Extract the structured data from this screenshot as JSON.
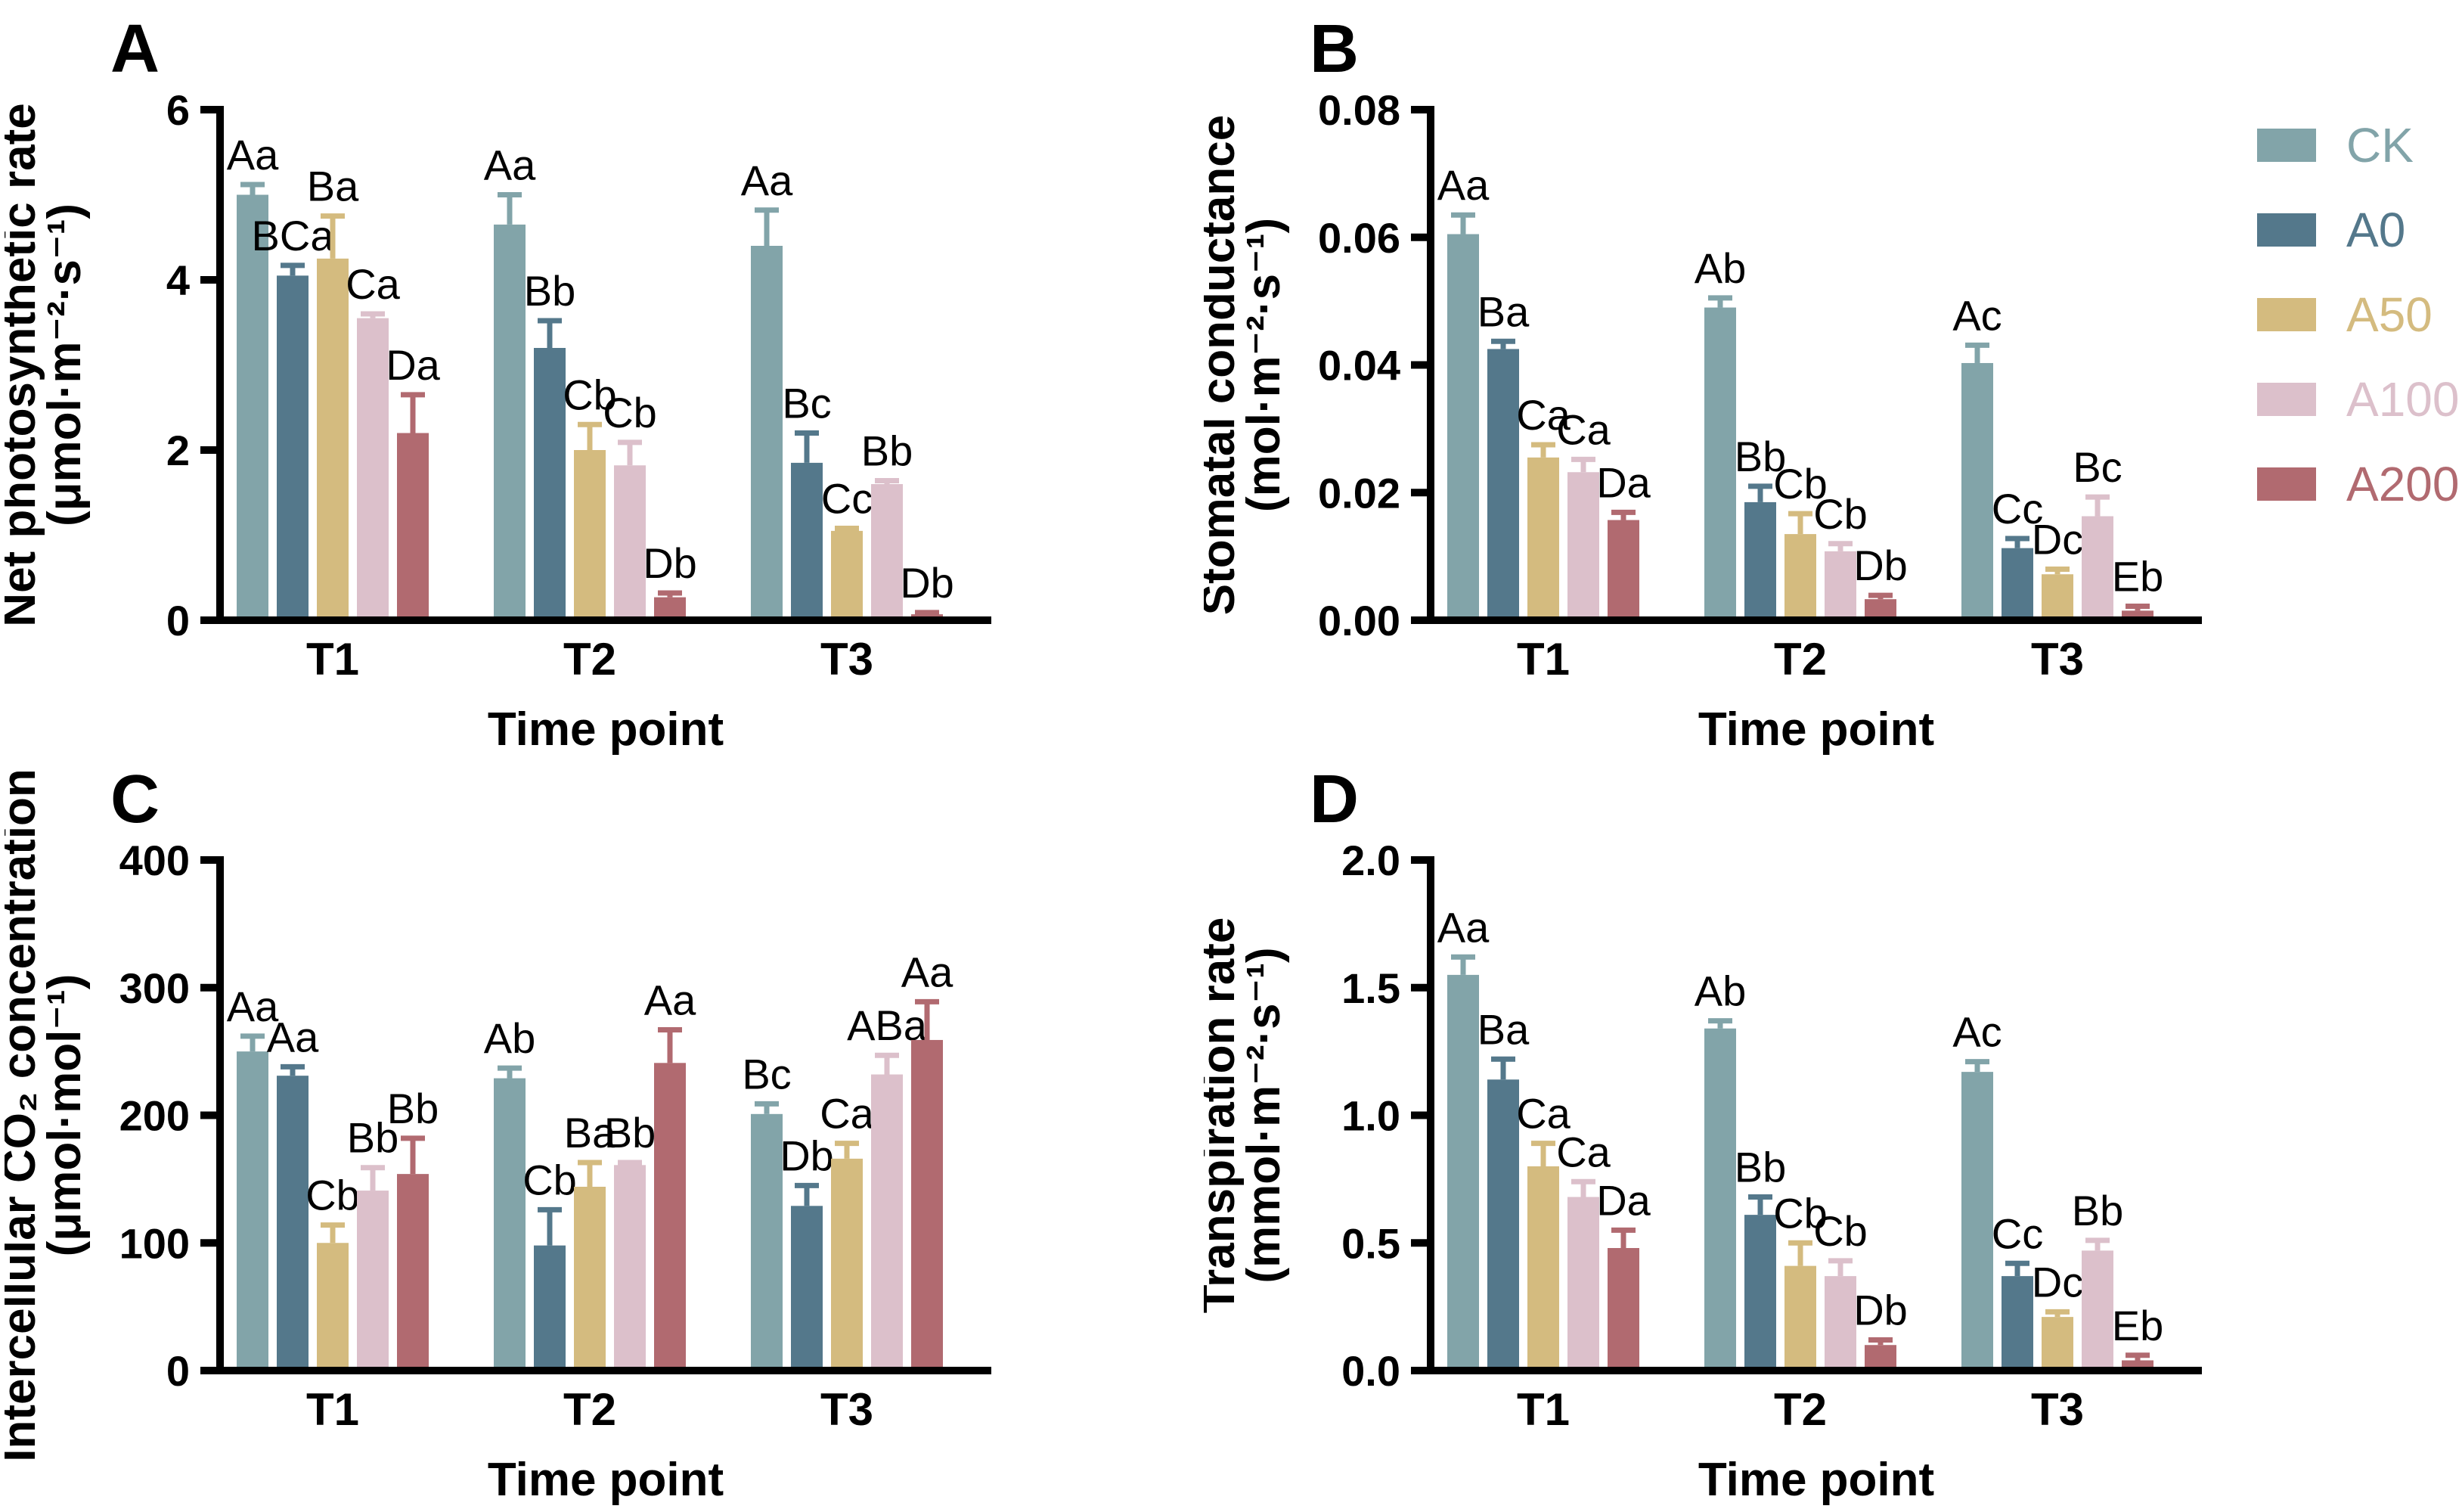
{
  "figure": {
    "panels": [
      "A",
      "B",
      "C",
      "D"
    ],
    "x_axis_title": "Time point",
    "categories": [
      "T1",
      "T2",
      "T3"
    ],
    "series_names": [
      "CK",
      "A0",
      "A50",
      "A100",
      "A200"
    ]
  },
  "legend": {
    "items": [
      {
        "label": "CK",
        "color": "#82A4A9"
      },
      {
        "label": "A0",
        "color": "#54788B"
      },
      {
        "label": "A50",
        "color": "#D4BB7F"
      },
      {
        "label": "A100",
        "color": "#DCC0CB"
      },
      {
        "label": "A200",
        "color": "#B16A70"
      }
    ]
  },
  "chart_data": [
    {
      "panel": "A",
      "type": "bar",
      "ylabel_line1": "Net photosynthetic rate",
      "ylabel_line2": "(μmol·m⁻²·s⁻¹)",
      "xlabel": "Time point",
      "categories": [
        "T1",
        "T2",
        "T3"
      ],
      "ylim": [
        0,
        6
      ],
      "yticks": [
        0,
        2,
        4,
        6
      ],
      "ytick_labels": [
        "0",
        "2",
        "4",
        "6"
      ],
      "legend_position": "none",
      "grid": false,
      "series": [
        {
          "name": "CK",
          "color": "#82A4A9",
          "values": [
            5.0,
            4.65,
            4.4
          ],
          "errors": [
            0.12,
            0.35,
            0.42
          ],
          "letters": [
            "Aa",
            "Aa",
            "Aa"
          ]
        },
        {
          "name": "A0",
          "color": "#54788B",
          "values": [
            4.05,
            3.2,
            1.85
          ],
          "errors": [
            0.12,
            0.32,
            0.35
          ],
          "letters": [
            "BCa",
            "Bb",
            "Bc"
          ]
        },
        {
          "name": "A50",
          "color": "#D4BB7F",
          "values": [
            4.25,
            2.0,
            1.05
          ],
          "errors": [
            0.5,
            0.3,
            0.03
          ],
          "letters": [
            "Ba",
            "Cb",
            "Cc"
          ]
        },
        {
          "name": "A100",
          "color": "#DCC0CB",
          "values": [
            3.55,
            1.82,
            1.6
          ],
          "errors": [
            0.05,
            0.27,
            0.04
          ],
          "letters": [
            "Ca",
            "Cb",
            "Bb"
          ]
        },
        {
          "name": "A200",
          "color": "#B16A70",
          "values": [
            2.2,
            0.27,
            0.07
          ],
          "errors": [
            0.45,
            0.05,
            0.02
          ],
          "letters": [
            "Da",
            "Db",
            "Db"
          ]
        }
      ]
    },
    {
      "panel": "B",
      "type": "bar",
      "ylabel_line1": "Stomatal conductance",
      "ylabel_line2": "(mol·m⁻²·s⁻¹)",
      "xlabel": "Time point",
      "categories": [
        "T1",
        "T2",
        "T3"
      ],
      "ylim": [
        0,
        0.08
      ],
      "yticks": [
        0,
        0.02,
        0.04,
        0.06,
        0.08
      ],
      "ytick_labels": [
        "0.00",
        "0.02",
        "0.04",
        "0.06",
        "0.08"
      ],
      "legend_position": "right",
      "grid": false,
      "series": [
        {
          "name": "CK",
          "color": "#82A4A9",
          "values": [
            0.0605,
            0.049,
            0.0403
          ],
          "errors": [
            0.003,
            0.0015,
            0.0028
          ],
          "letters": [
            "Aa",
            "Ab",
            "Ac"
          ]
        },
        {
          "name": "A0",
          "color": "#54788B",
          "values": [
            0.0425,
            0.0185,
            0.0113
          ],
          "errors": [
            0.0012,
            0.0025,
            0.0015
          ],
          "letters": [
            "Ba",
            "Bb",
            "Cc"
          ]
        },
        {
          "name": "A50",
          "color": "#D4BB7F",
          "values": [
            0.0255,
            0.0135,
            0.0072
          ],
          "errors": [
            0.002,
            0.0032,
            0.0008
          ],
          "letters": [
            "Ca",
            "Cb",
            "Dc"
          ]
        },
        {
          "name": "A100",
          "color": "#DCC0CB",
          "values": [
            0.0232,
            0.0108,
            0.0163
          ],
          "errors": [
            0.002,
            0.0012,
            0.003
          ],
          "letters": [
            "Ca",
            "Cb",
            "Bc"
          ]
        },
        {
          "name": "A200",
          "color": "#B16A70",
          "values": [
            0.0157,
            0.0033,
            0.0015
          ],
          "errors": [
            0.0012,
            0.0006,
            0.0007
          ],
          "letters": [
            "Da",
            "Db",
            "Eb"
          ]
        }
      ]
    },
    {
      "panel": "C",
      "type": "bar",
      "ylabel_line1": "Intercellular CO₂ concentration",
      "ylabel_line2": "(μmol·mol⁻¹)",
      "xlabel": "Time point",
      "categories": [
        "T1",
        "T2",
        "T3"
      ],
      "ylim": [
        0,
        400
      ],
      "yticks": [
        0,
        100,
        200,
        300,
        400
      ],
      "ytick_labels": [
        "0",
        "100",
        "200",
        "300",
        "400"
      ],
      "legend_position": "none",
      "grid": false,
      "series": [
        {
          "name": "CK",
          "color": "#82A4A9",
          "values": [
            250,
            229,
            201
          ],
          "errors": [
            12,
            8,
            8
          ],
          "letters": [
            "Aa",
            "Ab",
            "Bc"
          ]
        },
        {
          "name": "A0",
          "color": "#54788B",
          "values": [
            231,
            98,
            129
          ],
          "errors": [
            7,
            28,
            16
          ],
          "letters": [
            "Aa",
            "Cb",
            "Db"
          ]
        },
        {
          "name": "A50",
          "color": "#D4BB7F",
          "values": [
            100,
            144,
            166
          ],
          "errors": [
            14,
            19,
            12
          ],
          "letters": [
            "Cb",
            "Ba",
            "Ca"
          ]
        },
        {
          "name": "A100",
          "color": "#DCC0CB",
          "values": [
            141,
            161,
            232
          ],
          "errors": [
            18,
            2,
            15
          ],
          "letters": [
            "Bb",
            "Bb",
            "ABa"
          ]
        },
        {
          "name": "A200",
          "color": "#B16A70",
          "values": [
            154,
            241,
            259
          ],
          "errors": [
            28,
            26,
            30
          ],
          "letters": [
            "Bb",
            "Aa",
            "Aa"
          ]
        }
      ]
    },
    {
      "panel": "D",
      "type": "bar",
      "ylabel_line1": "Transpiration rate",
      "ylabel_line2": "(mmol·m⁻²·s⁻¹)",
      "xlabel": "Time point",
      "categories": [
        "T1",
        "T2",
        "T3"
      ],
      "ylim": [
        0,
        2.0
      ],
      "yticks": [
        0,
        0.5,
        1.0,
        1.5,
        2.0
      ],
      "ytick_labels": [
        "0.0",
        "0.5",
        "1.0",
        "1.5",
        "2.0"
      ],
      "legend_position": "none",
      "grid": false,
      "series": [
        {
          "name": "CK",
          "color": "#82A4A9",
          "values": [
            1.55,
            1.34,
            1.17
          ],
          "errors": [
            0.07,
            0.03,
            0.04
          ],
          "letters": [
            "Aa",
            "Ab",
            "Ac"
          ]
        },
        {
          "name": "A0",
          "color": "#54788B",
          "values": [
            1.14,
            0.61,
            0.37
          ],
          "errors": [
            0.08,
            0.07,
            0.05
          ],
          "letters": [
            "Ba",
            "Bb",
            "Cc"
          ]
        },
        {
          "name": "A50",
          "color": "#D4BB7F",
          "values": [
            0.8,
            0.41,
            0.21
          ],
          "errors": [
            0.09,
            0.09,
            0.02
          ],
          "letters": [
            "Ca",
            "Cb",
            "Dc"
          ]
        },
        {
          "name": "A100",
          "color": "#DCC0CB",
          "values": [
            0.68,
            0.37,
            0.47
          ],
          "errors": [
            0.06,
            0.06,
            0.04
          ],
          "letters": [
            "Ca",
            "Cb",
            "Bb"
          ]
        },
        {
          "name": "A200",
          "color": "#B16A70",
          "values": [
            0.48,
            0.1,
            0.04
          ],
          "errors": [
            0.07,
            0.02,
            0.02
          ],
          "letters": [
            "Da",
            "Db",
            "Eb"
          ]
        }
      ]
    }
  ]
}
